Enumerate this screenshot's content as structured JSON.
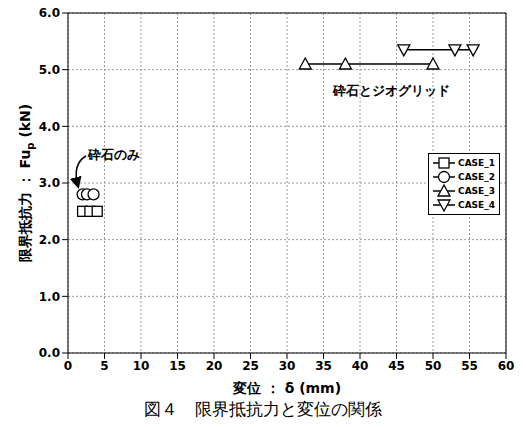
{
  "chart_data": {
    "type": "scatter",
    "title": "図４　限界抵抗力と変位の関係",
    "xlabel": "変位 ： δ (mm)",
    "ylabel": {
      "text": "限界抵抗力 ： Fu",
      "subscript": "p",
      "unit": "(kN)"
    },
    "xlim": [
      0,
      60
    ],
    "xticks": [
      0,
      5,
      10,
      15,
      20,
      25,
      30,
      35,
      40,
      45,
      50,
      55,
      60
    ],
    "ylim": [
      0,
      6
    ],
    "yticks": [
      {
        "value": 0,
        "label": "0.0"
      },
      {
        "value": 1,
        "label": "1.0"
      },
      {
        "value": 2,
        "label": "2.0"
      },
      {
        "value": 3,
        "label": "3.0"
      },
      {
        "value": 4,
        "label": "4.0"
      },
      {
        "value": 5,
        "label": "5.0"
      },
      {
        "value": 6,
        "label": "6.0"
      }
    ],
    "grid": true,
    "legend": "right",
    "annotations": [
      "砕石のみ",
      "砕石とジオグリッド"
    ],
    "series": [
      {
        "name": "CASE_1",
        "color": "#000000",
        "marker": "square",
        "line_style": "solid",
        "x": [
          2.0,
          3.0,
          4.0
        ],
        "values": [
          2.5,
          2.5,
          2.5
        ]
      },
      {
        "name": "CASE_2",
        "color": "#000000",
        "marker": "circle",
        "line_style": "solid",
        "x": [
          2.0,
          2.6,
          3.5
        ],
        "values": [
          2.8,
          2.8,
          2.8
        ]
      },
      {
        "name": "CASE_3",
        "color": "#000000",
        "marker": "triangle-up",
        "line_style": "solid",
        "x": [
          32.5,
          38.0,
          50.0
        ],
        "values": [
          5.1,
          5.1,
          5.1
        ]
      },
      {
        "name": "CASE_4",
        "color": "#000000",
        "marker": "triangle-down",
        "line_style": "solid",
        "x": [
          46.0,
          53.0,
          55.5
        ],
        "values": [
          5.35,
          5.35,
          5.35
        ]
      }
    ]
  }
}
